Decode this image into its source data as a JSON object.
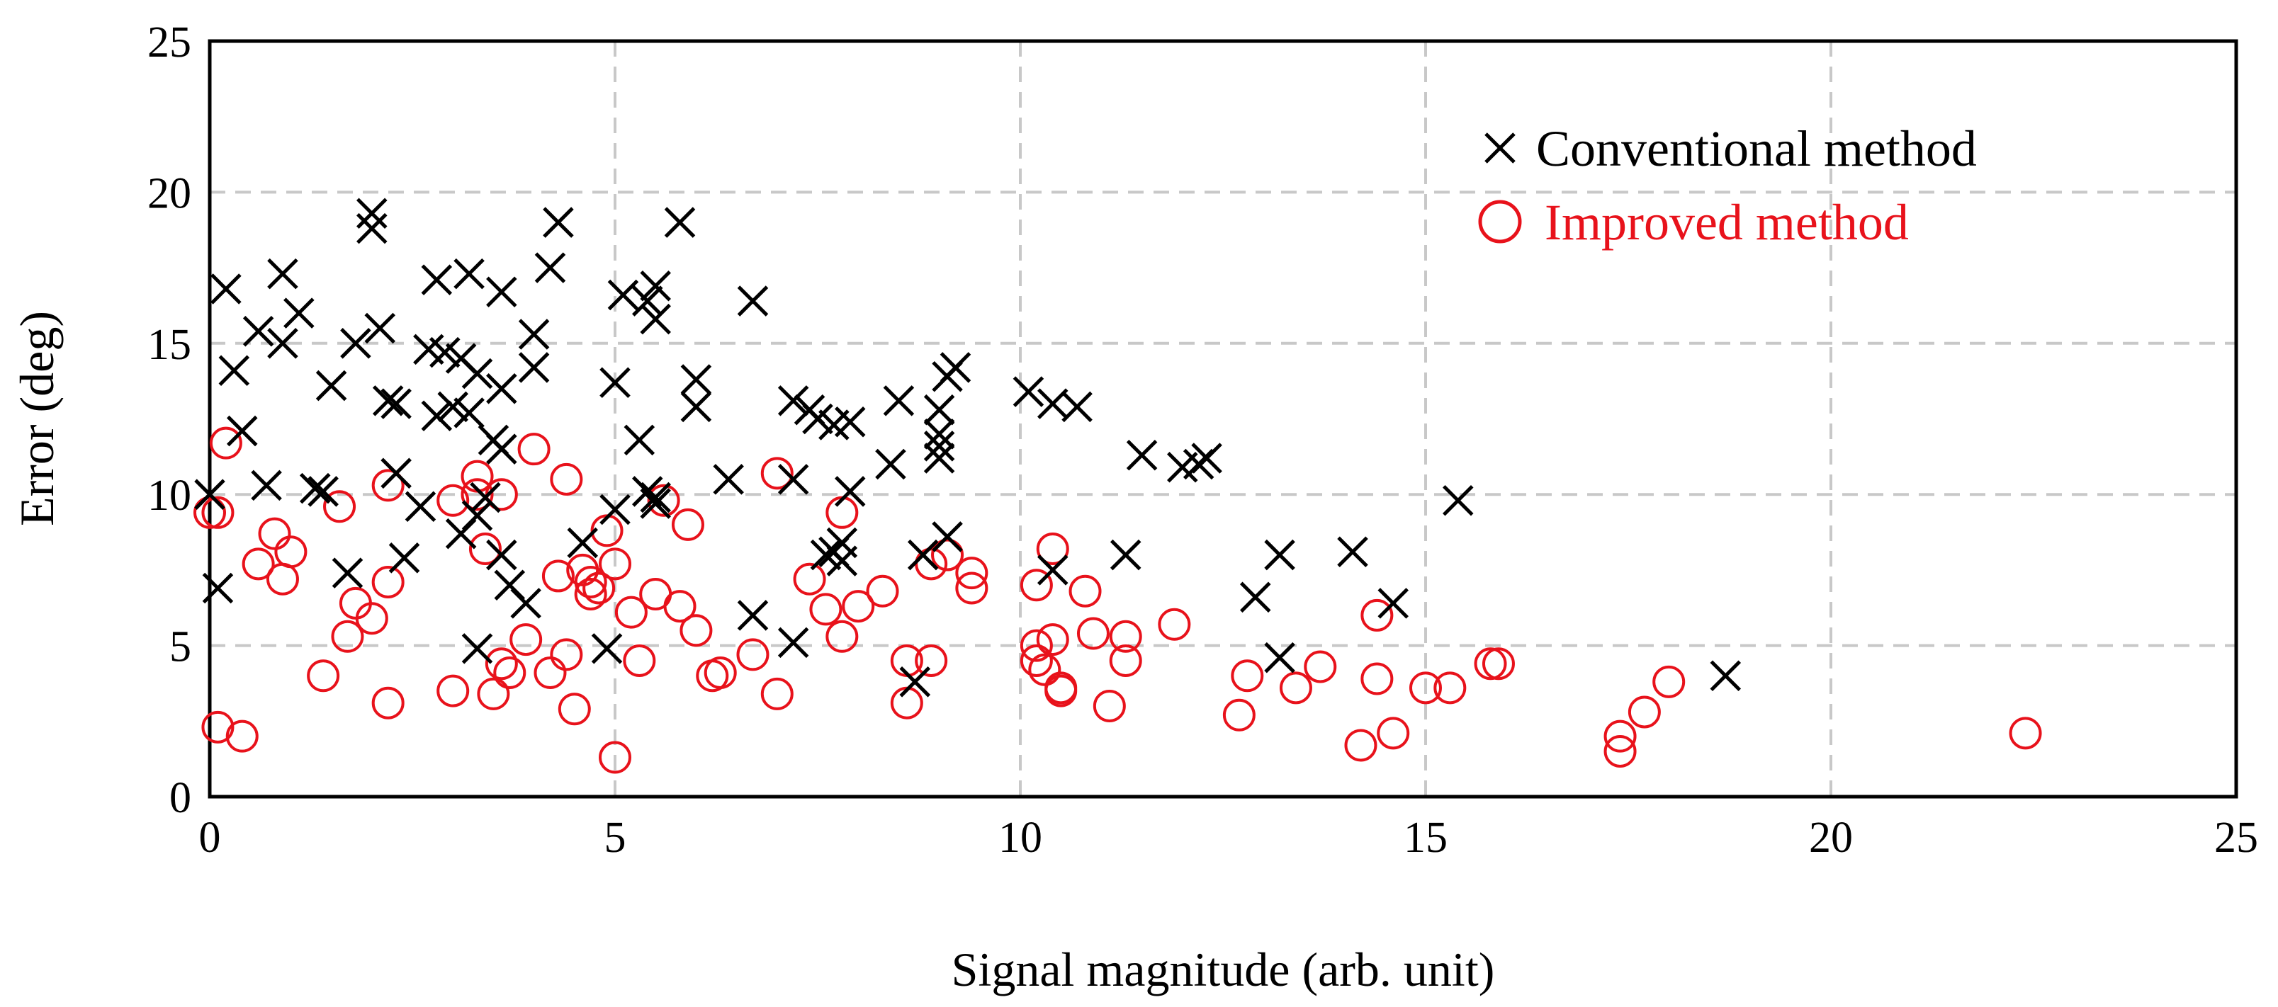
{
  "chart_data": {
    "type": "scatter",
    "title": "",
    "xlabel": "Signal magnitude (arb. unit)",
    "ylabel": "Error (deg)",
    "xlim": [
      0,
      25
    ],
    "ylim": [
      0,
      25
    ],
    "x_ticks": [
      "0",
      "5",
      "10",
      "15",
      "20",
      "25"
    ],
    "y_ticks": [
      "0",
      "5",
      "10",
      "15",
      "20",
      "25"
    ],
    "grid": true,
    "legend_position": "top-right",
    "colors": {
      "conventional": "#000000",
      "improved": "#e8121b"
    },
    "series": [
      {
        "name": "Conventional method",
        "marker": "x",
        "points": [
          [
            2.0,
            19.3
          ],
          [
            2.0,
            18.8
          ],
          [
            4.3,
            19.0
          ],
          [
            5.8,
            19.0
          ],
          [
            0.2,
            16.8
          ],
          [
            0.9,
            17.3
          ],
          [
            2.8,
            17.1
          ],
          [
            3.2,
            17.3
          ],
          [
            4.2,
            17.5
          ],
          [
            3.6,
            16.7
          ],
          [
            5.1,
            16.6
          ],
          [
            5.4,
            16.4
          ],
          [
            5.5,
            16.9
          ],
          [
            5.5,
            15.8
          ],
          [
            6.7,
            16.4
          ],
          [
            0.6,
            15.4
          ],
          [
            0.9,
            15.0
          ],
          [
            1.1,
            16.0
          ],
          [
            1.8,
            15.0
          ],
          [
            2.1,
            15.5
          ],
          [
            2.7,
            14.8
          ],
          [
            2.9,
            14.7
          ],
          [
            3.1,
            14.5
          ],
          [
            3.3,
            14.0
          ],
          [
            4.0,
            14.2
          ],
          [
            4.0,
            15.3
          ],
          [
            0.3,
            14.1
          ],
          [
            1.5,
            13.6
          ],
          [
            2.2,
            13.1
          ],
          [
            2.3,
            13.0
          ],
          [
            3.6,
            13.5
          ],
          [
            5.0,
            13.7
          ],
          [
            6.0,
            13.8
          ],
          [
            6.0,
            12.9
          ],
          [
            7.2,
            13.1
          ],
          [
            7.4,
            12.8
          ],
          [
            7.5,
            12.5
          ],
          [
            7.7,
            12.3
          ],
          [
            7.9,
            12.4
          ],
          [
            8.5,
            13.1
          ],
          [
            9.0,
            12.8
          ],
          [
            9.0,
            12.0
          ],
          [
            9.2,
            14.2
          ],
          [
            9.1,
            13.9
          ],
          [
            10.1,
            13.4
          ],
          [
            10.4,
            13.0
          ],
          [
            10.7,
            12.9
          ],
          [
            2.8,
            12.6
          ],
          [
            3.0,
            12.9
          ],
          [
            3.2,
            12.7
          ],
          [
            0.4,
            12.1
          ],
          [
            3.5,
            11.8
          ],
          [
            3.6,
            11.5
          ],
          [
            5.3,
            11.8
          ],
          [
            9.0,
            11.2
          ],
          [
            9.0,
            11.6
          ],
          [
            11.5,
            11.3
          ],
          [
            12.0,
            10.9
          ],
          [
            12.3,
            11.2
          ],
          [
            12.2,
            11.0
          ],
          [
            0.0,
            10.0
          ],
          [
            0.7,
            10.3
          ],
          [
            1.3,
            10.2
          ],
          [
            1.4,
            10.1
          ],
          [
            2.3,
            10.7
          ],
          [
            2.6,
            9.6
          ],
          [
            3.4,
            9.9
          ],
          [
            3.3,
            9.3
          ],
          [
            5.5,
            9.7
          ],
          [
            5.4,
            10.1
          ],
          [
            5.5,
            9.9
          ],
          [
            6.4,
            10.5
          ],
          [
            7.2,
            10.5
          ],
          [
            7.9,
            10.1
          ],
          [
            8.4,
            11.0
          ],
          [
            15.4,
            9.8
          ],
          [
            0.1,
            6.9
          ],
          [
            1.7,
            7.4
          ],
          [
            2.4,
            7.9
          ],
          [
            3.1,
            8.7
          ],
          [
            3.6,
            8.0
          ],
          [
            3.7,
            7.0
          ],
          [
            3.9,
            6.4
          ],
          [
            4.6,
            8.4
          ],
          [
            5.0,
            9.5
          ],
          [
            7.6,
            8.0
          ],
          [
            7.7,
            8.1
          ],
          [
            7.8,
            8.4
          ],
          [
            7.8,
            7.8
          ],
          [
            8.8,
            8.0
          ],
          [
            9.1,
            8.6
          ],
          [
            10.4,
            7.5
          ],
          [
            11.3,
            8.0
          ],
          [
            13.2,
            8.0
          ],
          [
            14.1,
            8.1
          ],
          [
            6.7,
            6.0
          ],
          [
            12.9,
            6.6
          ],
          [
            14.6,
            6.4
          ],
          [
            3.3,
            4.9
          ],
          [
            4.9,
            4.9
          ],
          [
            7.2,
            5.1
          ],
          [
            8.7,
            3.8
          ],
          [
            13.2,
            4.6
          ],
          [
            18.7,
            4.0
          ]
        ]
      },
      {
        "name": "Improved method",
        "marker": "o",
        "points": [
          [
            0.2,
            11.7
          ],
          [
            3.3,
            10.6
          ],
          [
            3.3,
            10.0
          ],
          [
            3.6,
            10.0
          ],
          [
            4.0,
            11.5
          ],
          [
            4.4,
            10.5
          ],
          [
            2.2,
            10.3
          ],
          [
            3.0,
            9.8
          ],
          [
            0.0,
            9.4
          ],
          [
            0.1,
            9.4
          ],
          [
            1.6,
            9.6
          ],
          [
            5.6,
            9.8
          ],
          [
            5.9,
            9.0
          ],
          [
            7.0,
            10.7
          ],
          [
            7.8,
            9.4
          ],
          [
            4.9,
            8.8
          ],
          [
            0.8,
            8.7
          ],
          [
            1.0,
            8.1
          ],
          [
            0.6,
            7.7
          ],
          [
            0.9,
            7.2
          ],
          [
            2.2,
            7.1
          ],
          [
            3.4,
            8.2
          ],
          [
            4.3,
            7.3
          ],
          [
            4.6,
            7.5
          ],
          [
            4.7,
            7.1
          ],
          [
            4.7,
            6.7
          ],
          [
            4.8,
            6.9
          ],
          [
            5.0,
            7.7
          ],
          [
            5.2,
            6.1
          ],
          [
            5.5,
            6.7
          ],
          [
            5.8,
            6.3
          ],
          [
            6.0,
            5.5
          ],
          [
            7.4,
            7.2
          ],
          [
            7.6,
            6.2
          ],
          [
            8.0,
            6.3
          ],
          [
            8.3,
            6.8
          ],
          [
            8.9,
            7.7
          ],
          [
            9.1,
            8.0
          ],
          [
            9.4,
            6.9
          ],
          [
            9.4,
            7.4
          ],
          [
            10.2,
            7.0
          ],
          [
            10.4,
            8.2
          ],
          [
            10.8,
            6.8
          ],
          [
            1.8,
            6.4
          ],
          [
            1.7,
            5.3
          ],
          [
            2.0,
            5.9
          ],
          [
            3.9,
            5.2
          ],
          [
            7.8,
            5.3
          ],
          [
            10.2,
            5.0
          ],
          [
            10.4,
            5.2
          ],
          [
            10.9,
            5.4
          ],
          [
            11.3,
            5.3
          ],
          [
            11.9,
            5.7
          ],
          [
            14.4,
            6.0
          ],
          [
            1.4,
            4.0
          ],
          [
            3.6,
            4.4
          ],
          [
            3.7,
            4.1
          ],
          [
            4.2,
            4.1
          ],
          [
            4.4,
            4.7
          ],
          [
            5.3,
            4.5
          ],
          [
            6.2,
            4.0
          ],
          [
            6.3,
            4.1
          ],
          [
            6.7,
            4.7
          ],
          [
            8.6,
            4.5
          ],
          [
            8.9,
            4.5
          ],
          [
            10.2,
            4.5
          ],
          [
            10.3,
            4.2
          ],
          [
            10.5,
            3.5
          ],
          [
            10.5,
            3.6
          ],
          [
            11.3,
            4.5
          ],
          [
            12.8,
            4.0
          ],
          [
            13.7,
            4.3
          ],
          [
            14.4,
            3.9
          ],
          [
            15.0,
            3.6
          ],
          [
            15.3,
            3.6
          ],
          [
            15.8,
            4.4
          ],
          [
            15.9,
            4.4
          ],
          [
            18.0,
            3.8
          ],
          [
            2.2,
            3.1
          ],
          [
            3.0,
            3.5
          ],
          [
            3.5,
            3.4
          ],
          [
            4.5,
            2.9
          ],
          [
            7.0,
            3.4
          ],
          [
            8.6,
            3.1
          ],
          [
            11.1,
            3.0
          ],
          [
            12.7,
            2.7
          ],
          [
            13.4,
            3.6
          ],
          [
            17.7,
            2.8
          ],
          [
            0.1,
            2.3
          ],
          [
            0.4,
            2.0
          ],
          [
            5.0,
            1.3
          ],
          [
            14.2,
            1.7
          ],
          [
            14.6,
            2.1
          ],
          [
            17.4,
            2.0
          ],
          [
            17.4,
            1.5
          ],
          [
            22.4,
            2.1
          ]
        ]
      }
    ]
  }
}
